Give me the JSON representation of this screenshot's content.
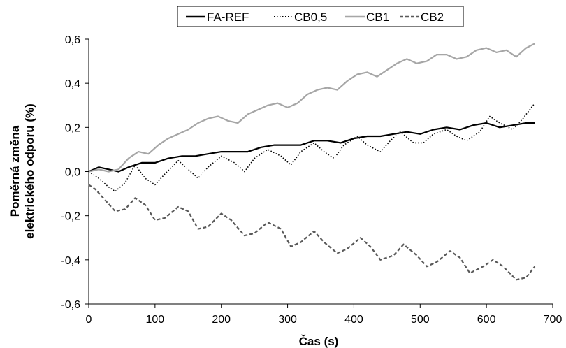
{
  "chart_data": {
    "type": "line",
    "xlabel": "Čas (s)",
    "ylabel_lines": [
      "Poměrná změna",
      "elektrického odporu (%)"
    ],
    "xlim": [
      0,
      700
    ],
    "ylim": [
      -0.6,
      0.6
    ],
    "x_ticks": [
      0,
      100,
      200,
      300,
      400,
      500,
      600,
      700
    ],
    "x_tick_labels": [
      "0",
      "100",
      "200",
      "300",
      "400",
      "500",
      "600",
      "700"
    ],
    "y_ticks": [
      -0.6,
      -0.4,
      -0.2,
      0.0,
      0.2,
      0.4,
      0.6
    ],
    "y_tick_labels": [
      "-0,6",
      "-0,4",
      "-0,2",
      "0,0",
      "0,2",
      "0,4",
      "0,6"
    ],
    "grid": false,
    "legend_position": "top",
    "series": [
      {
        "name": "FA-REF",
        "color": "#000000",
        "dash": "solid",
        "x": [
          0,
          15,
          30,
          45,
          60,
          80,
          100,
          120,
          140,
          160,
          180,
          200,
          220,
          240,
          260,
          280,
          300,
          320,
          340,
          360,
          380,
          400,
          420,
          440,
          460,
          480,
          500,
          520,
          540,
          560,
          580,
          600,
          620,
          640,
          660,
          673
        ],
        "y": [
          0.0,
          0.02,
          0.01,
          0.0,
          0.02,
          0.04,
          0.04,
          0.06,
          0.07,
          0.07,
          0.08,
          0.09,
          0.09,
          0.09,
          0.11,
          0.12,
          0.12,
          0.12,
          0.14,
          0.14,
          0.13,
          0.15,
          0.16,
          0.16,
          0.17,
          0.18,
          0.17,
          0.19,
          0.2,
          0.19,
          0.21,
          0.22,
          0.2,
          0.21,
          0.22,
          0.22
        ]
      },
      {
        "name": "CB0,5",
        "color": "#000000",
        "dash": "dotted",
        "x": [
          0,
          15,
          30,
          40,
          55,
          70,
          85,
          100,
          115,
          135,
          150,
          165,
          180,
          200,
          220,
          235,
          250,
          270,
          290,
          305,
          320,
          340,
          355,
          370,
          385,
          405,
          420,
          440,
          455,
          470,
          490,
          505,
          520,
          540,
          555,
          570,
          590,
          605,
          620,
          640,
          655,
          673
        ],
        "y": [
          0.0,
          -0.03,
          -0.07,
          -0.09,
          -0.05,
          0.03,
          -0.03,
          -0.06,
          -0.01,
          0.05,
          0.01,
          -0.03,
          0.02,
          0.07,
          0.04,
          0.0,
          0.06,
          0.1,
          0.07,
          0.03,
          0.09,
          0.13,
          0.09,
          0.06,
          0.12,
          0.16,
          0.12,
          0.09,
          0.14,
          0.18,
          0.13,
          0.13,
          0.17,
          0.19,
          0.16,
          0.14,
          0.18,
          0.25,
          0.22,
          0.19,
          0.24,
          0.31
        ]
      },
      {
        "name": "CB1",
        "color": "#a6a6a6",
        "dash": "solid",
        "x": [
          0,
          15,
          30,
          45,
          60,
          75,
          90,
          105,
          120,
          135,
          150,
          165,
          180,
          195,
          210,
          225,
          240,
          255,
          270,
          285,
          300,
          315,
          330,
          345,
          360,
          375,
          390,
          405,
          420,
          435,
          450,
          465,
          480,
          495,
          510,
          525,
          540,
          555,
          570,
          585,
          600,
          615,
          630,
          645,
          660,
          673
        ],
        "y": [
          0.0,
          0.01,
          0.0,
          0.01,
          0.06,
          0.09,
          0.08,
          0.12,
          0.15,
          0.17,
          0.19,
          0.22,
          0.24,
          0.25,
          0.23,
          0.22,
          0.26,
          0.28,
          0.3,
          0.31,
          0.29,
          0.31,
          0.35,
          0.37,
          0.38,
          0.37,
          0.41,
          0.44,
          0.45,
          0.43,
          0.46,
          0.49,
          0.51,
          0.49,
          0.5,
          0.53,
          0.53,
          0.51,
          0.52,
          0.55,
          0.56,
          0.54,
          0.55,
          0.52,
          0.56,
          0.58
        ]
      },
      {
        "name": "CB2",
        "color": "#595959",
        "dash": "dashed",
        "x": [
          0,
          10,
          25,
          40,
          55,
          70,
          85,
          100,
          115,
          135,
          150,
          165,
          180,
          200,
          215,
          235,
          250,
          270,
          290,
          305,
          320,
          340,
          355,
          375,
          390,
          410,
          425,
          440,
          460,
          475,
          495,
          510,
          525,
          545,
          560,
          575,
          595,
          610,
          625,
          645,
          660,
          673
        ],
        "y": [
          -0.06,
          -0.08,
          -0.13,
          -0.18,
          -0.17,
          -0.12,
          -0.15,
          -0.22,
          -0.21,
          -0.16,
          -0.18,
          -0.26,
          -0.25,
          -0.19,
          -0.22,
          -0.29,
          -0.28,
          -0.23,
          -0.26,
          -0.34,
          -0.32,
          -0.27,
          -0.32,
          -0.37,
          -0.35,
          -0.3,
          -0.34,
          -0.4,
          -0.38,
          -0.33,
          -0.38,
          -0.43,
          -0.41,
          -0.36,
          -0.39,
          -0.46,
          -0.43,
          -0.4,
          -0.43,
          -0.49,
          -0.48,
          -0.43
        ]
      }
    ]
  }
}
